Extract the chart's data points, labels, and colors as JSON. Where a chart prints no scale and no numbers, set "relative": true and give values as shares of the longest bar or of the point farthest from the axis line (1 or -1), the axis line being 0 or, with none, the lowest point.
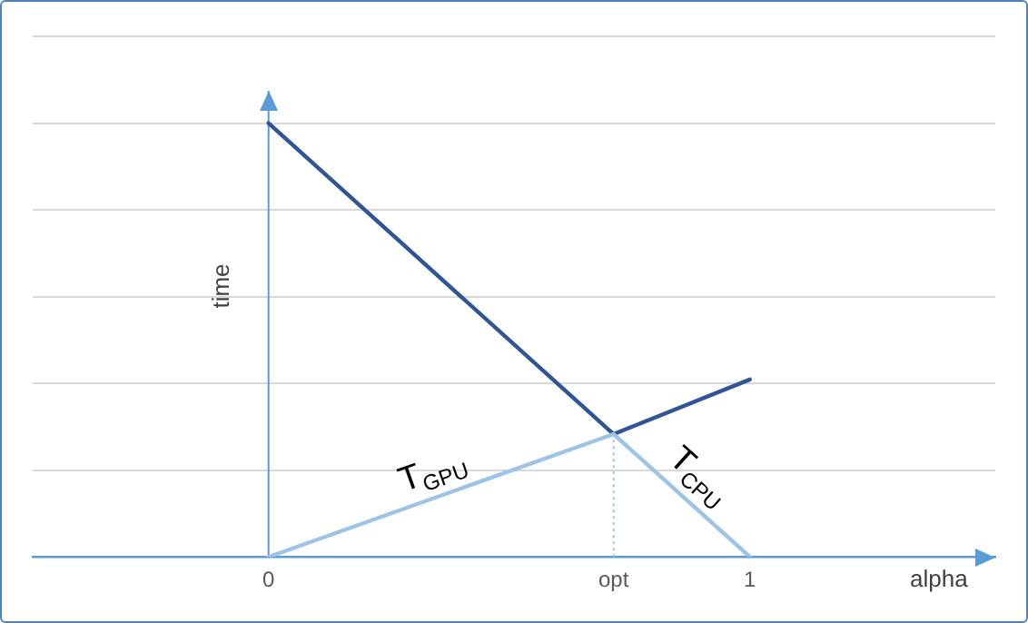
{
  "chart_data": {
    "type": "line",
    "relative": true,
    "xlabel": "alpha",
    "ylabel": "time",
    "xlim": [
      -0.49,
      1.51
    ],
    "xticks": [
      0,
      {
        "value": 0.717,
        "label": "opt"
      },
      1
    ],
    "grid": "y",
    "legend": false,
    "marker": "none",
    "line_style": "solid",
    "ref_lines": [
      {
        "axis": "x",
        "value": 0.717,
        "color": "#9dc3e6",
        "line_style": "dotted"
      },
      {
        "axis": "x",
        "value": 0,
        "color": "#5b9bd5",
        "line_style": "solid"
      }
    ],
    "series": [
      {
        "name": "T$_{GPU}$",
        "color": "#9dc3e6",
        "x": [
          0,
          0.717
        ],
        "values": [
          0,
          0.283
        ]
      },
      {
        "name": "T$_{CPU}$",
        "color": "#9dc3e6",
        "x": [
          0.717,
          1
        ],
        "values": [
          0.283,
          0
        ]
      },
      {
        "color": "#2f5597",
        "x": [
          0,
          0.717,
          1
        ],
        "values": [
          1,
          0.283,
          0.409
        ]
      }
    ]
  }
}
